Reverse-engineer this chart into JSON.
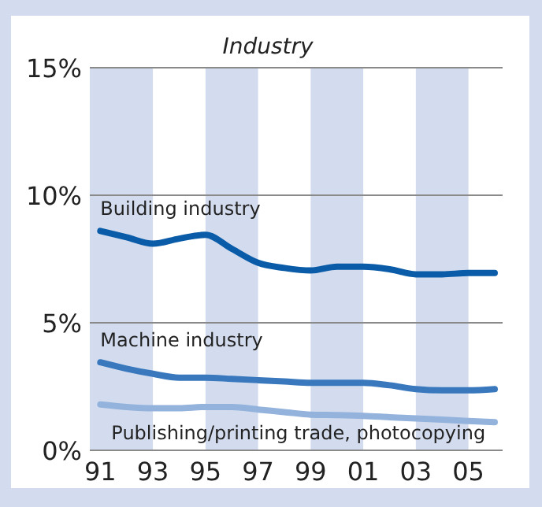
{
  "chart_data": {
    "type": "line",
    "title": "Industry",
    "x": [
      1991,
      1992,
      1993,
      1994,
      1995,
      1996,
      1997,
      1998,
      1999,
      2000,
      2001,
      2002,
      2003,
      2004,
      2005,
      2006
    ],
    "series": [
      {
        "name": "Building industry",
        "color": "#0b5ca8",
        "values": [
          8.6,
          8.35,
          8.1,
          8.3,
          8.45,
          7.9,
          7.35,
          7.15,
          7.05,
          7.2,
          7.2,
          7.1,
          6.9,
          6.9,
          6.95,
          6.95
        ]
      },
      {
        "name": "Machine industry",
        "color": "#3a78be",
        "values": [
          3.45,
          3.2,
          3.0,
          2.85,
          2.85,
          2.8,
          2.75,
          2.7,
          2.65,
          2.65,
          2.65,
          2.55,
          2.4,
          2.35,
          2.35,
          2.4
        ]
      },
      {
        "name": "Publishing/printing trade, photocopying",
        "color": "#93b2dc",
        "values": [
          1.8,
          1.7,
          1.65,
          1.65,
          1.7,
          1.7,
          1.6,
          1.5,
          1.4,
          1.38,
          1.35,
          1.3,
          1.25,
          1.2,
          1.15,
          1.1
        ]
      }
    ],
    "xlim": [
      1990.6,
      2006.3
    ],
    "ylim": [
      0,
      15
    ],
    "xticks": [
      {
        "value": 1991,
        "label": "91"
      },
      {
        "value": 1993,
        "label": "93"
      },
      {
        "value": 1995,
        "label": "95"
      },
      {
        "value": 1997,
        "label": "97"
      },
      {
        "value": 1999,
        "label": "99"
      },
      {
        "value": 2001,
        "label": "01"
      },
      {
        "value": 2003,
        "label": "03"
      },
      {
        "value": 2005,
        "label": "05"
      }
    ],
    "yticks": [
      {
        "value": 0,
        "label": "0%"
      },
      {
        "value": 5,
        "label": "5%"
      },
      {
        "value": 10,
        "label": "10%"
      },
      {
        "value": 15,
        "label": "15%"
      }
    ],
    "bands": [
      {
        "axis": "x",
        "from": 1990.6,
        "to": 1993,
        "color": "#d3dcee"
      },
      {
        "axis": "x",
        "from": 1995,
        "to": 1997,
        "color": "#d3dcee"
      },
      {
        "axis": "x",
        "from": 1999,
        "to": 2001,
        "color": "#d3dcee"
      },
      {
        "axis": "x",
        "from": 2003,
        "to": 2005,
        "color": "#d3dcee"
      }
    ],
    "grid": "y",
    "marker": "none",
    "line_style": "solid"
  }
}
